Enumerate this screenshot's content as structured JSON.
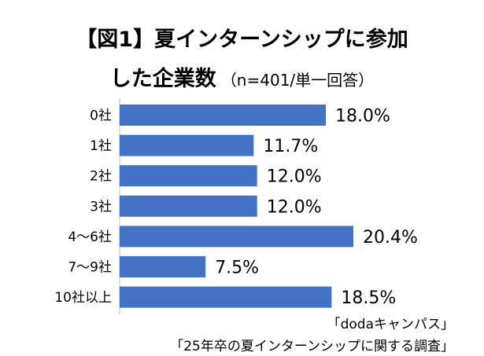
{
  "header": {
    "title_line1": "【図1】夏インターンシップに参加",
    "title_line2": "した企業数",
    "title_note": "（n=401/単一回答）"
  },
  "chart_data": {
    "type": "bar",
    "orientation": "horizontal",
    "categories": [
      "0社",
      "1社",
      "2社",
      "3社",
      "4〜6社",
      "7〜9社",
      "10社以上"
    ],
    "values": [
      18.0,
      11.7,
      12.0,
      12.0,
      20.4,
      7.5,
      18.5
    ],
    "value_labels": [
      "18.0%",
      "11.7%",
      "12.0%",
      "12.0%",
      "20.4%",
      "7.5%",
      "18.5%"
    ],
    "bar_color": "#4472C4",
    "xlim": [
      0,
      20.4
    ]
  },
  "source": {
    "line1": "「dodaキャンパス」",
    "line2": "「25年卒の夏インターンシップに関する調査」"
  }
}
